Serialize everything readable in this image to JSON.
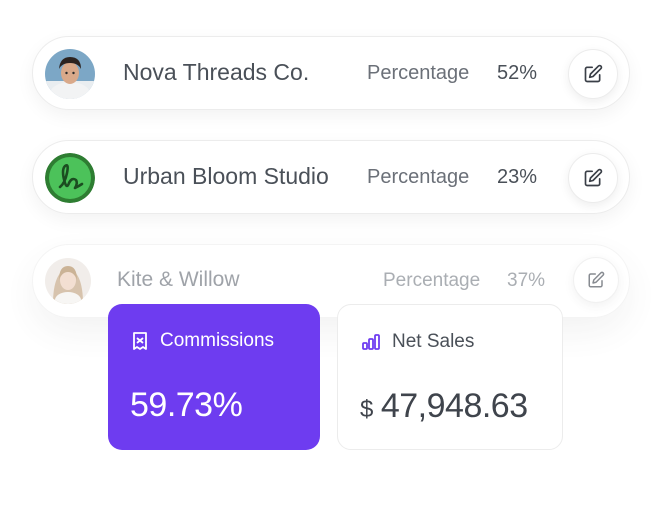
{
  "rows": [
    {
      "name": "Nova Threads Co.",
      "label": "Percentage",
      "value": "52%"
    },
    {
      "name": "Urban Bloom Studio",
      "label": "Percentage",
      "value": "23%"
    },
    {
      "name": "Kite & Willow",
      "label": "Percentage",
      "value": "37%"
    }
  ],
  "cards": {
    "commissions": {
      "title": "Commissions",
      "value": "59.73%",
      "icon": "receipt-icon"
    },
    "sales": {
      "title": "Net Sales",
      "currency": "$",
      "value": "47,948.63",
      "icon": "bar-chart-icon"
    }
  },
  "colors": {
    "accent": "#6e3cf0",
    "logo_green": "#4cc25a"
  }
}
